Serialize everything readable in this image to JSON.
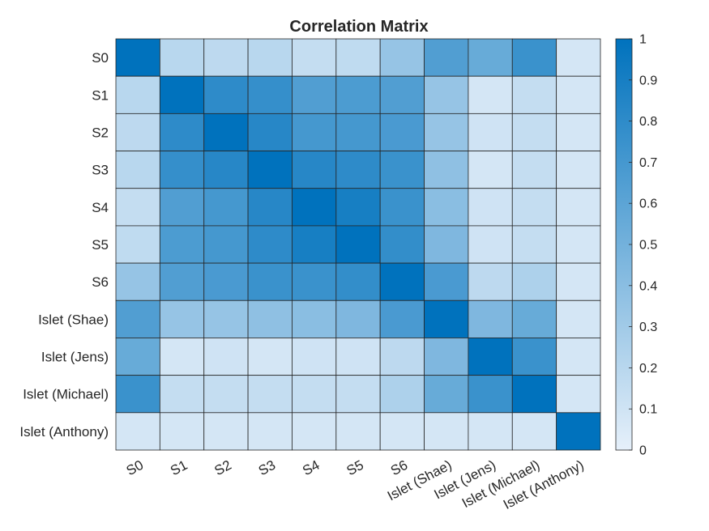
{
  "chart_data": {
    "type": "heatmap",
    "title": "Correlation Matrix",
    "row_labels": [
      "S0",
      "S1",
      "S2",
      "S3",
      "S4",
      "S5",
      "S6",
      "Islet (Shae)",
      "Islet (Jens)",
      "Islet (Michael)",
      "Islet (Anthony)"
    ],
    "col_labels": [
      "S0",
      "S1",
      "S2",
      "S3",
      "S4",
      "S5",
      "S6",
      "Islet (Shae)",
      "Islet (Jens)",
      "Islet (Michael)",
      "Islet (Anthony)"
    ],
    "values": [
      [
        1.0,
        0.2,
        0.18,
        0.2,
        0.15,
        0.17,
        0.35,
        0.65,
        0.55,
        0.75,
        0.08
      ],
      [
        0.2,
        1.0,
        0.8,
        0.77,
        0.65,
        0.67,
        0.65,
        0.35,
        0.08,
        0.15,
        0.08
      ],
      [
        0.18,
        0.8,
        1.0,
        0.83,
        0.7,
        0.7,
        0.68,
        0.35,
        0.1,
        0.15,
        0.08
      ],
      [
        0.2,
        0.77,
        0.83,
        1.0,
        0.83,
        0.8,
        0.75,
        0.38,
        0.08,
        0.15,
        0.08
      ],
      [
        0.15,
        0.65,
        0.7,
        0.83,
        1.0,
        0.9,
        0.75,
        0.4,
        0.1,
        0.15,
        0.08
      ],
      [
        0.17,
        0.67,
        0.7,
        0.8,
        0.9,
        1.0,
        0.78,
        0.45,
        0.1,
        0.15,
        0.08
      ],
      [
        0.35,
        0.65,
        0.68,
        0.75,
        0.75,
        0.78,
        1.0,
        0.68,
        0.18,
        0.25,
        0.08
      ],
      [
        0.65,
        0.35,
        0.35,
        0.38,
        0.4,
        0.45,
        0.68,
        1.0,
        0.45,
        0.55,
        0.08
      ],
      [
        0.55,
        0.08,
        0.1,
        0.08,
        0.1,
        0.1,
        0.18,
        0.45,
        1.0,
        0.75,
        0.08
      ],
      [
        0.75,
        0.15,
        0.15,
        0.15,
        0.15,
        0.15,
        0.25,
        0.55,
        0.75,
        1.0,
        0.08
      ],
      [
        0.08,
        0.08,
        0.08,
        0.08,
        0.08,
        0.08,
        0.08,
        0.08,
        0.08,
        0.08,
        1.0
      ]
    ],
    "colorbar": {
      "min": 0,
      "max": 1,
      "ticks": [
        "0",
        "0.1",
        "0.2",
        "0.3",
        "0.4",
        "0.5",
        "0.6",
        "0.7",
        "0.8",
        "0.9",
        "1"
      ],
      "color_low": "#e6f0fa",
      "color_high": "#0072bd"
    },
    "grid": true,
    "legend": "colorbar-right"
  }
}
